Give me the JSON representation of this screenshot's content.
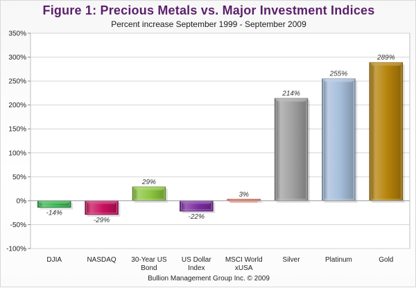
{
  "title": "Figure 1: Precious Metals vs. Major Investment Indices",
  "subtitle": "Percent increase September 1999 - September 2009",
  "footer": "Bullion Management Group Inc. © 2009",
  "chart_data": {
    "type": "bar",
    "categories": [
      [
        "DJIA"
      ],
      [
        "NASDAQ"
      ],
      [
        "30-Year US",
        "Bond"
      ],
      [
        "US Dollar",
        "Index"
      ],
      [
        "MSCI World",
        "xUSA"
      ],
      [
        "Silver"
      ],
      [
        "Platinum"
      ],
      [
        "Gold"
      ]
    ],
    "values": [
      -14,
      -29,
      29,
      -22,
      3,
      214,
      255,
      289
    ],
    "data_labels": [
      "-14%",
      "-29%",
      "29%",
      "-22%",
      "3%",
      "214%",
      "255%",
      "289%"
    ],
    "colors": [
      "#2fb34a",
      "#c8105e",
      "#8cc63f",
      "#7a2c9e",
      "#e8553a",
      "#a0a0a0",
      "#a6bedb",
      "#b5830a"
    ],
    "ylim": [
      -100,
      350
    ],
    "yticks": [
      -100,
      -50,
      0,
      50,
      100,
      150,
      200,
      250,
      300,
      350
    ],
    "ytick_labels": [
      "-100%",
      "-50%",
      "0%",
      "50%",
      "100%",
      "150%",
      "200%",
      "250%",
      "300%",
      "350%"
    ],
    "grid": true
  }
}
